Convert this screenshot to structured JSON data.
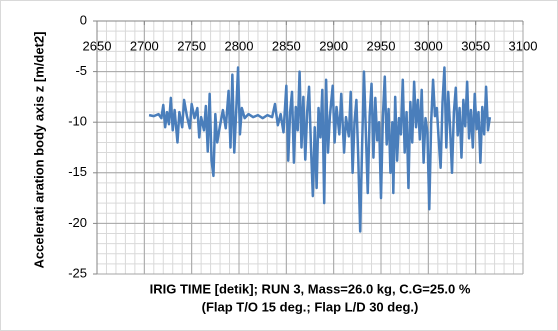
{
  "chart_data": {
    "type": "line",
    "y_label": "Accelerati aration body axis z [m/det2]",
    "x_label": [
      "IRIG TIME [detik]; RUN 3, Mass=26.0 kg, C.G=25.0 %",
      "(Flap T/O 15 deg.; Flap L/D 30 deg.)"
    ],
    "xlim": [
      2650,
      3100
    ],
    "xticks": [
      2650,
      2700,
      2750,
      2800,
      2850,
      2900,
      2950,
      3000,
      3050,
      3100
    ],
    "ylim": [
      -25,
      0
    ],
    "yticks": [
      0,
      -5,
      -10,
      -15,
      -20,
      -25
    ],
    "grid": true,
    "minor_x_step": 10,
    "minor_y_step": 1,
    "series": [
      {
        "color": "#4a7ebb",
        "x": [
          2705,
          2710,
          2715,
          2718,
          2720,
          2722,
          2724,
          2726,
          2728,
          2730,
          2732,
          2735,
          2737,
          2740,
          2742,
          2745,
          2748,
          2750,
          2753,
          2756,
          2758,
          2760,
          2763,
          2765,
          2767,
          2769,
          2771,
          2773,
          2775,
          2777,
          2780,
          2783,
          2786,
          2789,
          2791,
          2793,
          2795,
          2797,
          2799,
          2801,
          2803,
          2806,
          2810,
          2815,
          2820,
          2825,
          2830,
          2835,
          2838,
          2841,
          2844,
          2847,
          2850,
          2852,
          2854,
          2856,
          2858,
          2860,
          2862,
          2864,
          2866,
          2868,
          2870,
          2872,
          2874,
          2876,
          2878,
          2880,
          2882,
          2884,
          2886,
          2888,
          2890,
          2892,
          2894,
          2896,
          2899,
          2901,
          2903,
          2906,
          2908,
          2911,
          2913,
          2916,
          2918,
          2920,
          2922,
          2924,
          2926,
          2928,
          2930,
          2932,
          2934,
          2936,
          2938,
          2940,
          2942,
          2944,
          2946,
          2948,
          2950,
          2952,
          2954,
          2956,
          2958,
          2960,
          2962,
          2963,
          2965,
          2967,
          2969,
          2971,
          2973,
          2975,
          2977,
          2979,
          2981,
          2983,
          2985,
          2987,
          2989,
          2991,
          2993,
          2995,
          2997,
          2999,
          3001,
          3003,
          3005,
          3007,
          3009,
          3011,
          3013,
          3015,
          3017,
          3019,
          3021,
          3023,
          3025,
          3027,
          3029,
          3031,
          3033,
          3035,
          3037,
          3039,
          3041,
          3043,
          3045,
          3047,
          3049,
          3051,
          3053,
          3055,
          3057,
          3059,
          3061,
          3063,
          3065
        ],
        "values": [
          -9.3,
          -9.4,
          -9.2,
          -9.6,
          -8.3,
          -10.5,
          -9,
          -10.2,
          -7.6,
          -10.8,
          -8.8,
          -12,
          -9,
          -10.5,
          -7.8,
          -9.4,
          -10.6,
          -8.2,
          -9.6,
          -8.6,
          -11.5,
          -9.5,
          -10.8,
          -8.4,
          -12.9,
          -7.2,
          -13.8,
          -15.3,
          -9.2,
          -12,
          -10.3,
          -8.8,
          -10.6,
          -6.9,
          -12.5,
          -5.3,
          -13,
          -9,
          -4.6,
          -11.2,
          -8.6,
          -9.6,
          -9.2,
          -9.5,
          -9.3,
          -9.6,
          -9.3,
          -9.5,
          -8.2,
          -10.3,
          -9.2,
          -11,
          -6.4,
          -13.8,
          -9,
          -7,
          -14,
          -8.5,
          -10.8,
          -5,
          -12.5,
          -7.5,
          -13.7,
          -9,
          -6.5,
          -12.4,
          -17.3,
          -10.5,
          -16.5,
          -8.6,
          -11.5,
          -6.8,
          -18,
          -5.8,
          -13,
          -9.4,
          -6.4,
          -12,
          -8.5,
          -11.2,
          -7.2,
          -13,
          -9.5,
          -11.4,
          -7,
          -15,
          -10,
          -7.8,
          -13.6,
          -20.8,
          -12.5,
          -5,
          -11,
          -17,
          -9.4,
          -6.2,
          -13.5,
          -7.6,
          -11.8,
          -10,
          -17.5,
          -9.4,
          -5.5,
          -12.2,
          -8.7,
          -15,
          -10,
          -17,
          -7.5,
          -13.8,
          -9.6,
          -11.2,
          -5.8,
          -13,
          -9,
          -16.5,
          -8,
          -12,
          -6,
          -10.5,
          -7.8,
          -11.7,
          -6.8,
          -14,
          -9.6,
          -11,
          -18.6,
          -10,
          -5.8,
          -9.4,
          -8.6,
          -11.8,
          -14.5,
          -8,
          -4.6,
          -12.5,
          -7,
          -10.6,
          -15,
          -9,
          -6.6,
          -11.3,
          -8.6,
          -13.5,
          -7.8,
          -10.4,
          -6,
          -11.6,
          -8.8,
          -12.5,
          -7.2,
          -10.7,
          -9,
          -14,
          -8.5,
          -11.2,
          -6.5,
          -10.8,
          -9.5
        ]
      }
    ]
  }
}
